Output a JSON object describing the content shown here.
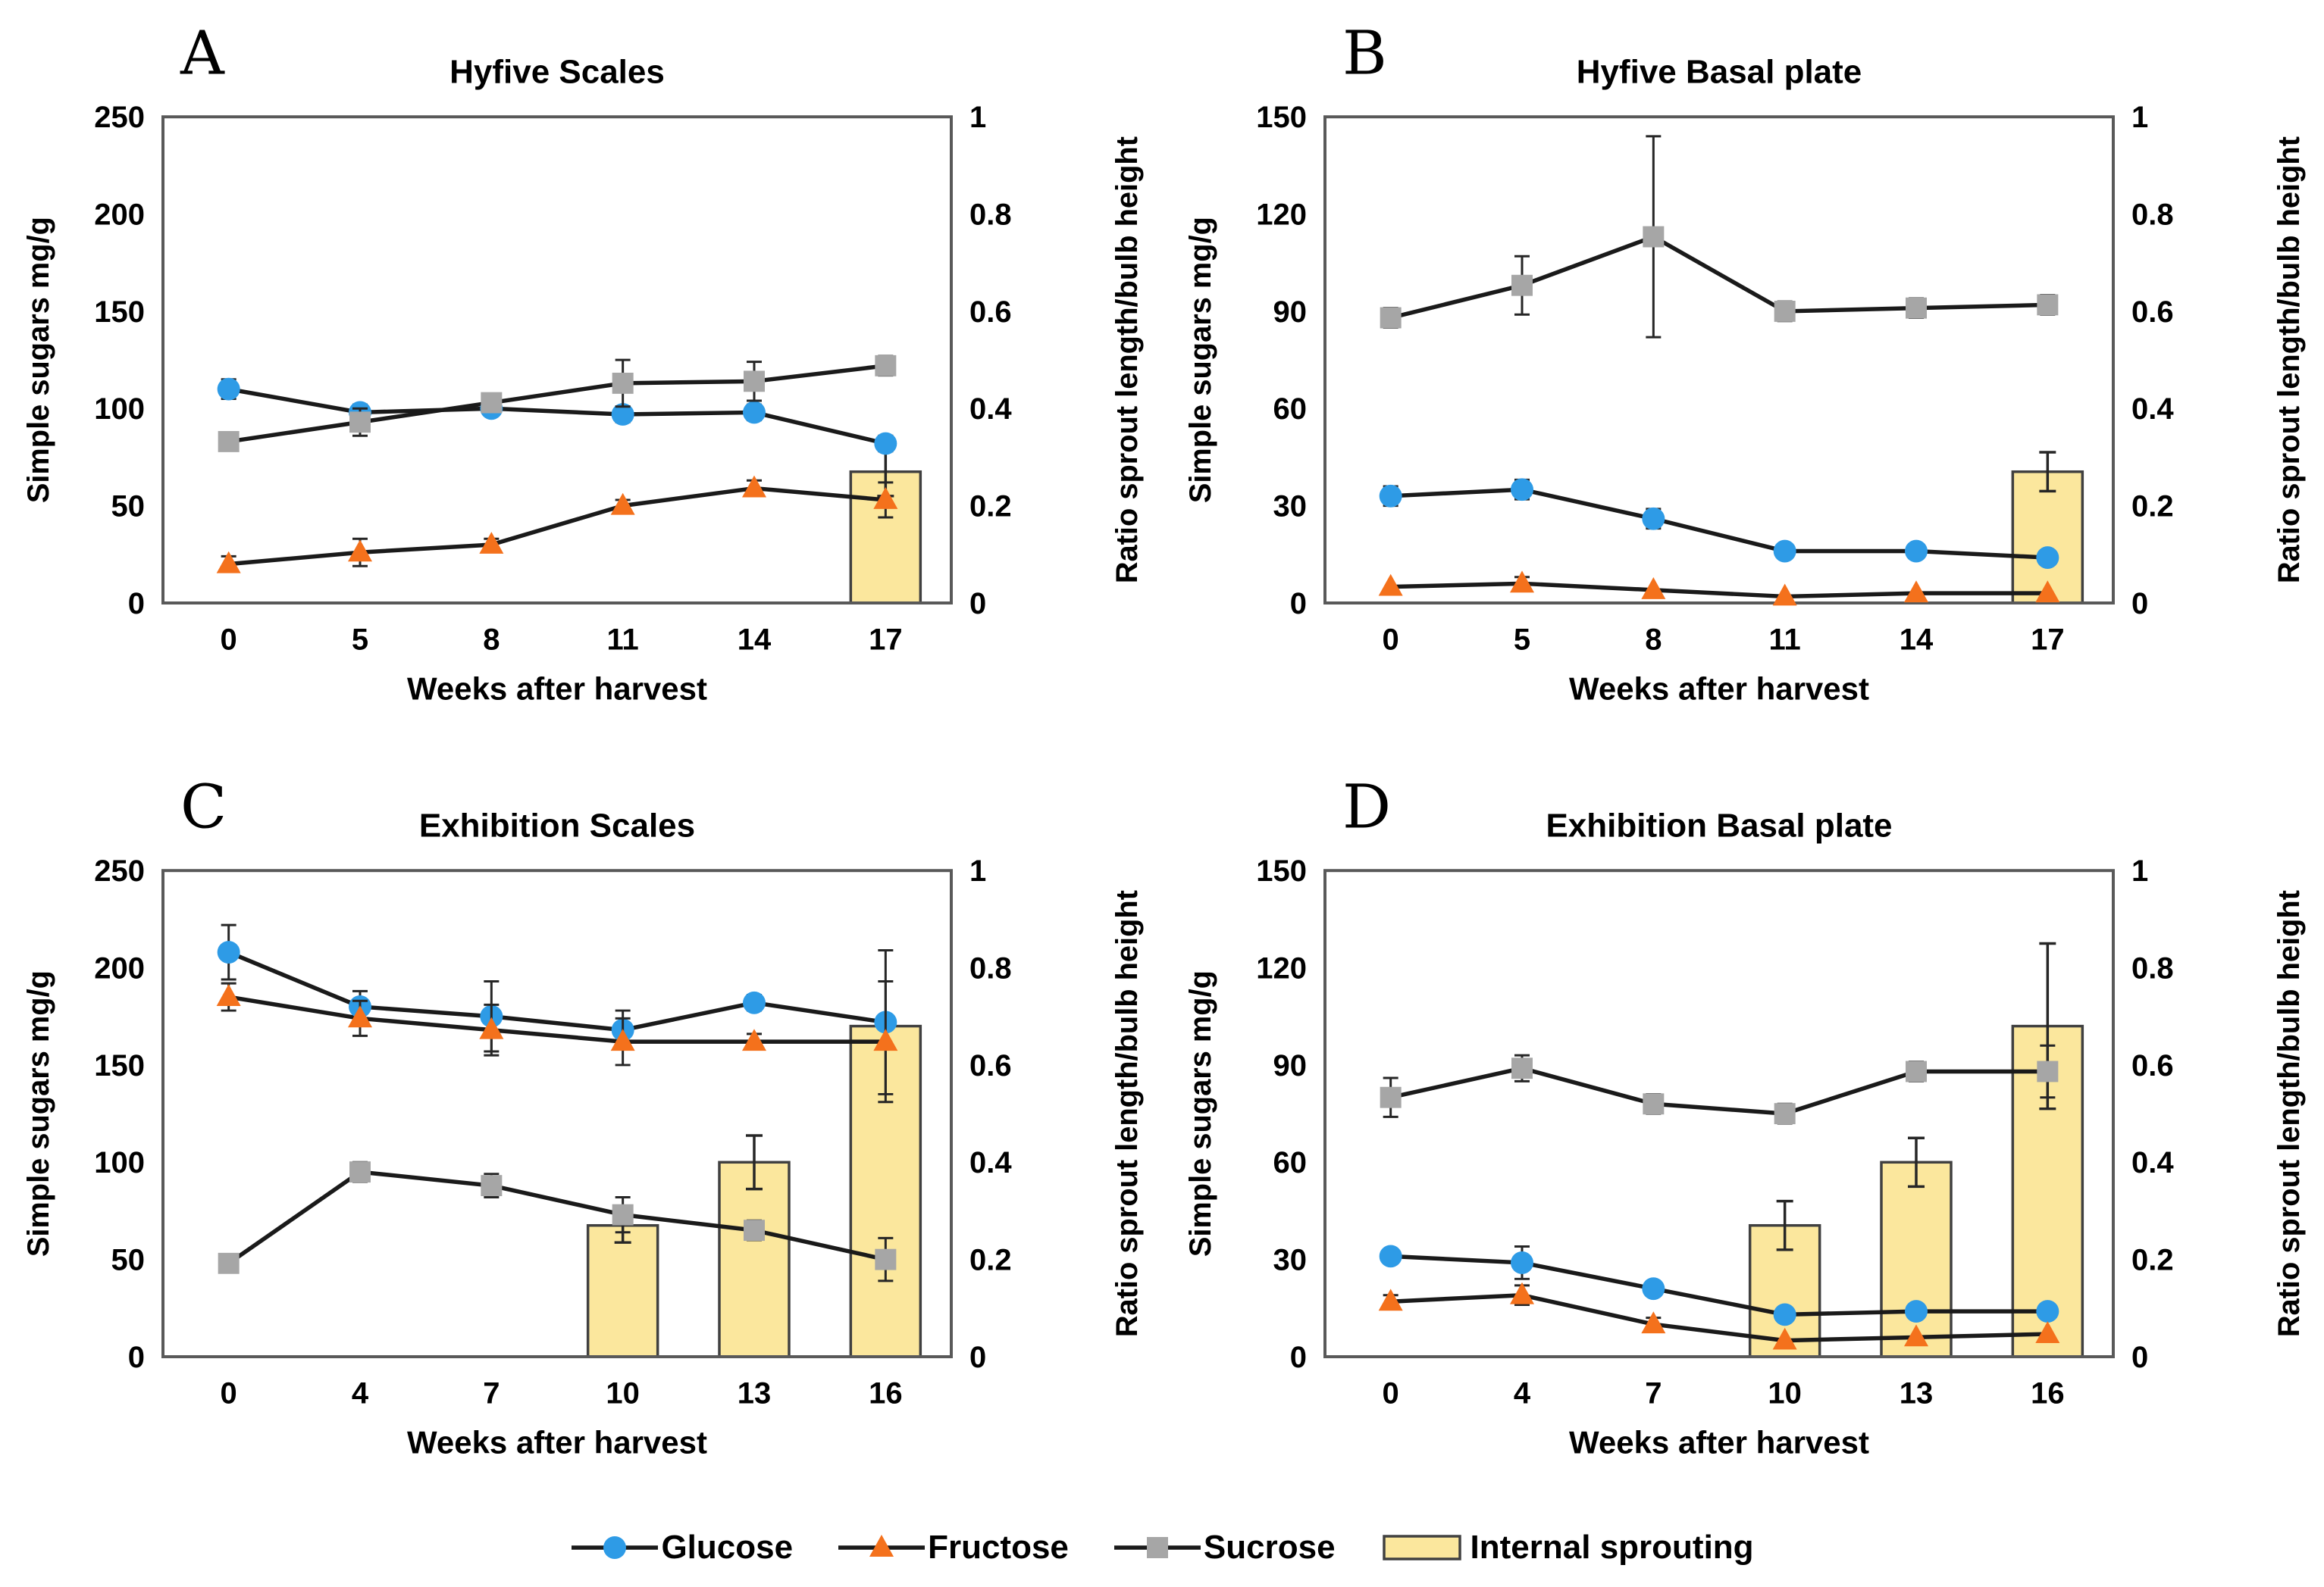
{
  "figure": {
    "x_axis_title": "Weeks after harvest",
    "y_left_title": "Simple sugars mg/g",
    "y_right_title": "Ratio sprout length/bulb height",
    "colors": {
      "glucose": "#2E9BE6",
      "fructose": "#F4711C",
      "sucrose": "#A6A6A6",
      "bar_fill": "#FBE79D",
      "bar_stroke": "#404040",
      "line": "#1a1a1a",
      "axis": "#595959",
      "error": "#262626",
      "text": "#000000"
    },
    "legend": [
      {
        "key": "glucose",
        "label": "Glucose",
        "marker": "circle",
        "color": "#2E9BE6"
      },
      {
        "key": "fructose",
        "label": "Fructose",
        "marker": "triangle",
        "color": "#F4711C"
      },
      {
        "key": "sucrose",
        "label": "Sucrose",
        "marker": "square",
        "color": "#A6A6A6"
      },
      {
        "key": "internal_sprouting",
        "label": "Internal sprouting",
        "marker": "bar",
        "color": "#FBE79D"
      }
    ]
  },
  "chart_data": [
    {
      "id": "A",
      "letter": "A",
      "title": "Hyfive Scales",
      "type": "line+bar",
      "x_label": "Weeks after harvest",
      "x_ticks": [
        0,
        5,
        8,
        11,
        14,
        17
      ],
      "y_left": {
        "label": "Simple sugars mg/g",
        "min": 0,
        "max": 250,
        "ticks": [
          0,
          50,
          100,
          150,
          200,
          250
        ]
      },
      "y_right": {
        "label": "Ratio sprout length/bulb height",
        "min": 0,
        "max": 1,
        "ticks": [
          0,
          0.2,
          0.4,
          0.6,
          0.8,
          1
        ]
      },
      "series": [
        {
          "name": "Glucose",
          "axis": "left",
          "values": [
            110,
            98,
            100,
            97,
            98,
            82
          ],
          "errors": [
            5,
            4,
            3,
            4,
            4,
            4
          ]
        },
        {
          "name": "Fructose",
          "axis": "left",
          "values": [
            20,
            26,
            30,
            50,
            59,
            53
          ],
          "errors": [
            4,
            7,
            3,
            3,
            4,
            9
          ]
        },
        {
          "name": "Sucrose",
          "axis": "left",
          "values": [
            83,
            93,
            103,
            113,
            114,
            122
          ],
          "errors": [
            4,
            7,
            3,
            12,
            10,
            5
          ]
        }
      ],
      "bars": {
        "name": "Internal sprouting",
        "axis": "right",
        "values": [
          null,
          null,
          null,
          null,
          null,
          0.27
        ],
        "errors": [
          null,
          null,
          null,
          null,
          null,
          0.05
        ]
      }
    },
    {
      "id": "B",
      "letter": "B",
      "title": "Hyfive Basal plate",
      "type": "line+bar",
      "x_label": "Weeks after harvest",
      "x_ticks": [
        0,
        5,
        8,
        11,
        14,
        17
      ],
      "y_left": {
        "label": "Simple sugars mg/g",
        "min": 0,
        "max": 150,
        "ticks": [
          0,
          30,
          60,
          90,
          120,
          150
        ]
      },
      "y_right": {
        "label": "Ratio sprout length/bulb height",
        "min": 0,
        "max": 1,
        "ticks": [
          0,
          0.2,
          0.4,
          0.6,
          0.8,
          1
        ]
      },
      "series": [
        {
          "name": "Glucose",
          "axis": "left",
          "values": [
            33,
            35,
            26,
            16,
            16,
            14
          ],
          "errors": [
            3,
            3,
            3,
            2,
            2,
            2
          ]
        },
        {
          "name": "Fructose",
          "axis": "left",
          "values": [
            5,
            6,
            4,
            2,
            3,
            3
          ],
          "errors": [
            1,
            2,
            1,
            1,
            1,
            1
          ]
        },
        {
          "name": "Sucrose",
          "axis": "left",
          "values": [
            88,
            98,
            113,
            90,
            91,
            92
          ],
          "errors": [
            3,
            9,
            31,
            3,
            3,
            3
          ]
        }
      ],
      "bars": {
        "name": "Internal sprouting",
        "axis": "right",
        "values": [
          null,
          null,
          null,
          null,
          null,
          0.27
        ],
        "errors": [
          null,
          null,
          null,
          null,
          null,
          0.04
        ]
      }
    },
    {
      "id": "C",
      "letter": "C",
      "title": "Exhibition Scales",
      "type": "line+bar",
      "x_label": "Weeks after harvest",
      "x_ticks": [
        0,
        4,
        7,
        10,
        13,
        16
      ],
      "y_left": {
        "label": "Simple sugars mg/g",
        "min": 0,
        "max": 250,
        "ticks": [
          0,
          50,
          100,
          150,
          200,
          250
        ]
      },
      "y_right": {
        "label": "Ratio sprout length/bulb height",
        "min": 0,
        "max": 1,
        "ticks": [
          0,
          0.2,
          0.4,
          0.6,
          0.8,
          1
        ]
      },
      "series": [
        {
          "name": "Glucose",
          "axis": "left",
          "values": [
            208,
            180,
            175,
            168,
            182,
            172
          ],
          "errors": [
            14,
            8,
            18,
            10,
            4,
            37
          ]
        },
        {
          "name": "Fructose",
          "axis": "left",
          "values": [
            185,
            174,
            168,
            162,
            162,
            162
          ],
          "errors": [
            7,
            9,
            13,
            12,
            4,
            31
          ]
        },
        {
          "name": "Sucrose",
          "axis": "left",
          "values": [
            48,
            95,
            88,
            73,
            65,
            50
          ],
          "errors": [
            3,
            5,
            6,
            9,
            5,
            11
          ]
        }
      ],
      "bars": {
        "name": "Internal sprouting",
        "axis": "right",
        "values": [
          null,
          null,
          null,
          0.27,
          0.4,
          0.68
        ],
        "errors": [
          null,
          null,
          null,
          0.035,
          0.055,
          null
        ]
      }
    },
    {
      "id": "D",
      "letter": "D",
      "title": "Exhibition Basal plate",
      "type": "line+bar",
      "x_label": "Weeks after harvest",
      "x_ticks": [
        0,
        4,
        7,
        10,
        13,
        16
      ],
      "y_left": {
        "label": "Simple sugars mg/g",
        "min": 0,
        "max": 150,
        "ticks": [
          0,
          30,
          60,
          90,
          120,
          150
        ]
      },
      "y_right": {
        "label": "Ratio sprout length/bulb height",
        "min": 0,
        "max": 1,
        "ticks": [
          0,
          0.2,
          0.4,
          0.6,
          0.8,
          1
        ]
      },
      "series": [
        {
          "name": "Glucose",
          "axis": "left",
          "values": [
            31,
            29,
            21,
            13,
            14,
            14
          ],
          "errors": [
            2,
            5,
            2,
            2,
            2,
            2
          ]
        },
        {
          "name": "Fructose",
          "axis": "left",
          "values": [
            17,
            19,
            10,
            5,
            6,
            7
          ],
          "errors": [
            2,
            3,
            2,
            1,
            1,
            1
          ]
        },
        {
          "name": "Sucrose",
          "axis": "left",
          "values": [
            80,
            89,
            78,
            75,
            88,
            88
          ],
          "errors": [
            6,
            4,
            3,
            3,
            3,
            8
          ]
        }
      ],
      "bars": {
        "name": "Internal sprouting",
        "axis": "right",
        "values": [
          null,
          null,
          null,
          0.27,
          0.4,
          0.68
        ],
        "errors": [
          null,
          null,
          null,
          0.05,
          0.05,
          0.17
        ]
      }
    }
  ]
}
